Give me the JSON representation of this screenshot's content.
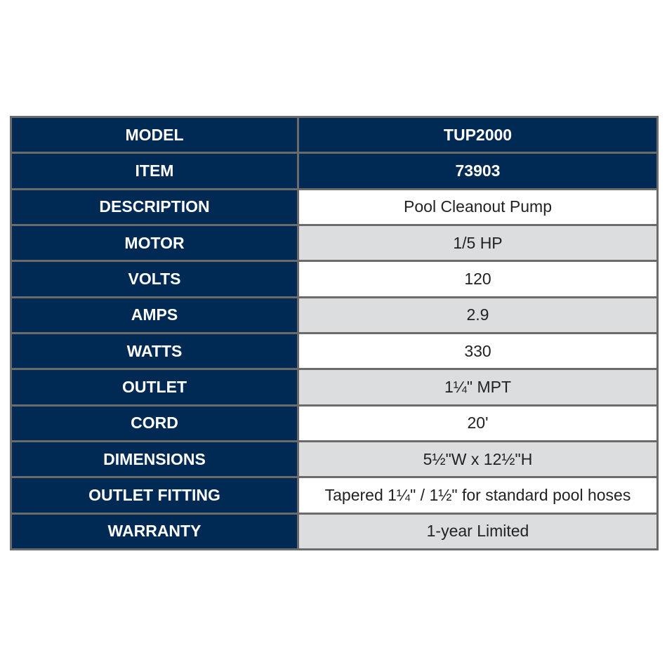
{
  "spec_table": {
    "rows": [
      {
        "label": "MODEL",
        "value": "TUP2000",
        "style": "header"
      },
      {
        "label": "ITEM",
        "value": "73903",
        "style": "header"
      },
      {
        "label": "DESCRIPTION",
        "value": "Pool Cleanout Pump",
        "style": "white"
      },
      {
        "label": "MOTOR",
        "value": "1/5 HP",
        "style": "gray"
      },
      {
        "label": "VOLTS",
        "value": "120",
        "style": "white"
      },
      {
        "label": "AMPS",
        "value": "2.9",
        "style": "gray"
      },
      {
        "label": "WATTS",
        "value": "330",
        "style": "white"
      },
      {
        "label": "OUTLET",
        "value": "1¼\" MPT",
        "style": "gray"
      },
      {
        "label": "CORD",
        "value": "20'",
        "style": "white"
      },
      {
        "label": "DIMENSIONS",
        "value": "5½\"W x 12½\"H",
        "style": "gray"
      },
      {
        "label": "OUTLET FITTING",
        "value": "Tapered 1¼\" / 1½\" for standard pool hoses",
        "style": "white"
      },
      {
        "label": "WARRANTY",
        "value": "1-year Limited",
        "style": "gray"
      }
    ]
  },
  "colors": {
    "navy": "#002a54",
    "border": "#6b6b6b",
    "alt_row": "#dcdddf"
  }
}
